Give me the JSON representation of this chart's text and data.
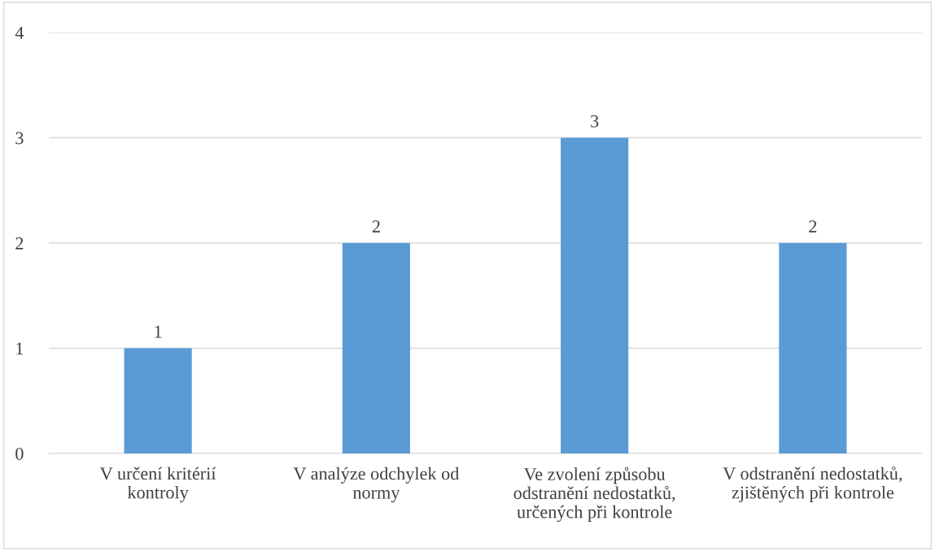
{
  "chart_data": {
    "type": "bar",
    "categories": [
      "V určení kritérií\nkontroly",
      "V analýze odchylek od\nnormy",
      "Ve zvolení způsobu\nodstranění nedostatků,\nurčených při kontrole",
      "V odstranění nedostatků,\nzjištěných při kontrole"
    ],
    "values": [
      1,
      2,
      3,
      2
    ],
    "color": "#5b9bd5",
    "ylim": [
      0,
      4
    ],
    "yticks": [
      0,
      1,
      2,
      3,
      4
    ],
    "grid": "y",
    "data_labels": true
  }
}
